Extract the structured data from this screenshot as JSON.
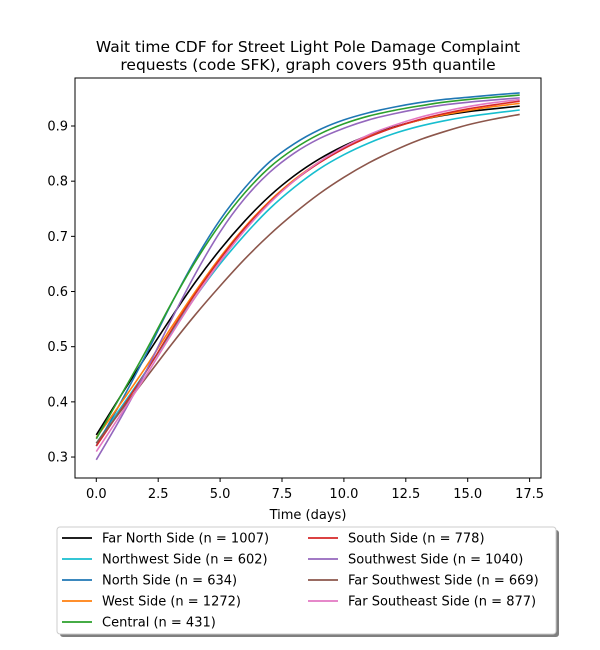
{
  "chart_data": {
    "type": "line",
    "title": "Wait time CDF for Street Light Pole Damage Complaint requests (code SFK), graph covers 95th quantile",
    "title_lines": [
      "Wait time CDF for Street Light Pole Damage Complaint",
      "requests (code SFK), graph covers 95th quantile"
    ],
    "xlabel": "Time (days)",
    "ylabel": "",
    "xlim": [
      -0.86,
      17.96
    ],
    "ylim": [
      0.262,
      0.987
    ],
    "x_ticks": [
      0.0,
      2.5,
      5.0,
      7.5,
      10.0,
      12.5,
      15.0,
      17.5
    ],
    "x_tick_labels": [
      "0.0",
      "2.5",
      "5.0",
      "7.5",
      "10.0",
      "12.5",
      "15.0",
      "17.5"
    ],
    "y_ticks": [
      0.3,
      0.4,
      0.5,
      0.6,
      0.7,
      0.8,
      0.9
    ],
    "y_tick_labels": [
      "0.3",
      "0.4",
      "0.5",
      "0.6",
      "0.7",
      "0.8",
      "0.9"
    ],
    "grid": false,
    "legend_placement": "below-center",
    "x": [
      0,
      1,
      2,
      3,
      4,
      5,
      6,
      7,
      8,
      9,
      10,
      11,
      12,
      13,
      14,
      15,
      16,
      17.1
    ],
    "series": [
      {
        "name": "Far North Side (n = 1007)",
        "color": "#000000",
        "values": [
          0.34,
          0.412,
          0.482,
          0.551,
          0.617,
          0.676,
          0.728,
          0.773,
          0.81,
          0.84,
          0.864,
          0.883,
          0.898,
          0.91,
          0.919,
          0.926,
          0.931,
          0.936
        ]
      },
      {
        "name": "Northwest Side (n = 602)",
        "color": "#17becf",
        "values": [
          0.325,
          0.39,
          0.455,
          0.524,
          0.59,
          0.65,
          0.703,
          0.75,
          0.789,
          0.822,
          0.848,
          0.869,
          0.886,
          0.899,
          0.909,
          0.917,
          0.923,
          0.929
        ]
      },
      {
        "name": "North Side (n = 634)",
        "color": "#1f77b4",
        "values": [
          0.32,
          0.4,
          0.485,
          0.575,
          0.658,
          0.73,
          0.788,
          0.835,
          0.868,
          0.893,
          0.911,
          0.924,
          0.934,
          0.942,
          0.948,
          0.952,
          0.956,
          0.96
        ]
      },
      {
        "name": "West Side (n = 1272)",
        "color": "#ff7f0e",
        "values": [
          0.335,
          0.398,
          0.463,
          0.533,
          0.6,
          0.662,
          0.717,
          0.764,
          0.803,
          0.835,
          0.861,
          0.881,
          0.897,
          0.91,
          0.92,
          0.928,
          0.935,
          0.941
        ]
      },
      {
        "name": "Central (n = 431)",
        "color": "#2ca02c",
        "values": [
          0.333,
          0.412,
          0.492,
          0.576,
          0.654,
          0.722,
          0.779,
          0.825,
          0.859,
          0.885,
          0.904,
          0.918,
          0.928,
          0.936,
          0.943,
          0.948,
          0.952,
          0.956
        ]
      },
      {
        "name": "South Side (n = 778)",
        "color": "#d62728",
        "values": [
          0.32,
          0.386,
          0.454,
          0.527,
          0.596,
          0.659,
          0.715,
          0.762,
          0.801,
          0.833,
          0.859,
          0.88,
          0.897,
          0.911,
          0.922,
          0.931,
          0.938,
          0.945
        ]
      },
      {
        "name": "Southwest Side (n = 1040)",
        "color": "#9467bd",
        "values": [
          0.295,
          0.372,
          0.455,
          0.546,
          0.632,
          0.708,
          0.769,
          0.816,
          0.851,
          0.877,
          0.896,
          0.911,
          0.922,
          0.931,
          0.938,
          0.943,
          0.947,
          0.951
        ]
      },
      {
        "name": "Far Southwest Side (n = 669)",
        "color": "#8c564b",
        "values": [
          0.325,
          0.384,
          0.443,
          0.502,
          0.558,
          0.61,
          0.659,
          0.703,
          0.742,
          0.777,
          0.807,
          0.833,
          0.855,
          0.874,
          0.889,
          0.902,
          0.912,
          0.921
        ]
      },
      {
        "name": "Far Southeast Side (n = 877)",
        "color": "#e377c2",
        "values": [
          0.31,
          0.378,
          0.447,
          0.52,
          0.59,
          0.654,
          0.711,
          0.76,
          0.801,
          0.835,
          0.862,
          0.884,
          0.901,
          0.915,
          0.926,
          0.935,
          0.942,
          0.948
        ]
      }
    ]
  }
}
